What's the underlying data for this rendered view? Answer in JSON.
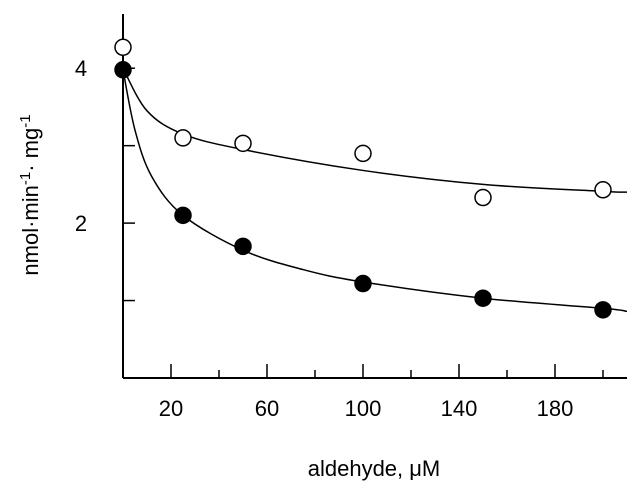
{
  "chart_data": {
    "type": "scatter",
    "xlabel": "aldehyde, μM",
    "ylabel_parts": [
      "nmol·min",
      "-1",
      "· mg",
      "-1"
    ],
    "xlim": [
      0,
      210
    ],
    "ylim": [
      0,
      4.7
    ],
    "x_major_ticks": [
      20,
      60,
      100,
      140,
      180
    ],
    "x_minor_ticks": [
      0,
      40,
      80,
      120,
      160,
      200
    ],
    "y_major_ticks": [
      2,
      4
    ],
    "y_minor_ticks": [
      1,
      3
    ],
    "grid": false,
    "series": [
      {
        "marker": "open-circle",
        "points": [
          {
            "x": 0,
            "y": 4.27
          },
          {
            "x": 25,
            "y": 3.1
          },
          {
            "x": 50,
            "y": 3.03
          },
          {
            "x": 100,
            "y": 2.9
          },
          {
            "x": 150,
            "y": 2.33
          },
          {
            "x": 200,
            "y": 2.43
          }
        ],
        "fit": [
          {
            "x": 0,
            "y": 4.0
          },
          {
            "x": 10,
            "y": 3.45
          },
          {
            "x": 25,
            "y": 3.15
          },
          {
            "x": 50,
            "y": 2.95
          },
          {
            "x": 100,
            "y": 2.68
          },
          {
            "x": 150,
            "y": 2.5
          },
          {
            "x": 200,
            "y": 2.41
          },
          {
            "x": 210,
            "y": 2.4
          }
        ]
      },
      {
        "marker": "filled-circle",
        "points": [
          {
            "x": 0,
            "y": 3.98
          },
          {
            "x": 25,
            "y": 2.1
          },
          {
            "x": 50,
            "y": 1.7
          },
          {
            "x": 100,
            "y": 1.22
          },
          {
            "x": 150,
            "y": 1.03
          },
          {
            "x": 200,
            "y": 0.88
          }
        ],
        "fit": [
          {
            "x": 0,
            "y": 3.98
          },
          {
            "x": 5,
            "y": 3.2
          },
          {
            "x": 12,
            "y": 2.6
          },
          {
            "x": 25,
            "y": 2.1
          },
          {
            "x": 50,
            "y": 1.65
          },
          {
            "x": 75,
            "y": 1.4
          },
          {
            "x": 100,
            "y": 1.24
          },
          {
            "x": 150,
            "y": 1.03
          },
          {
            "x": 200,
            "y": 0.9
          },
          {
            "x": 210,
            "y": 0.86
          }
        ]
      }
    ]
  }
}
